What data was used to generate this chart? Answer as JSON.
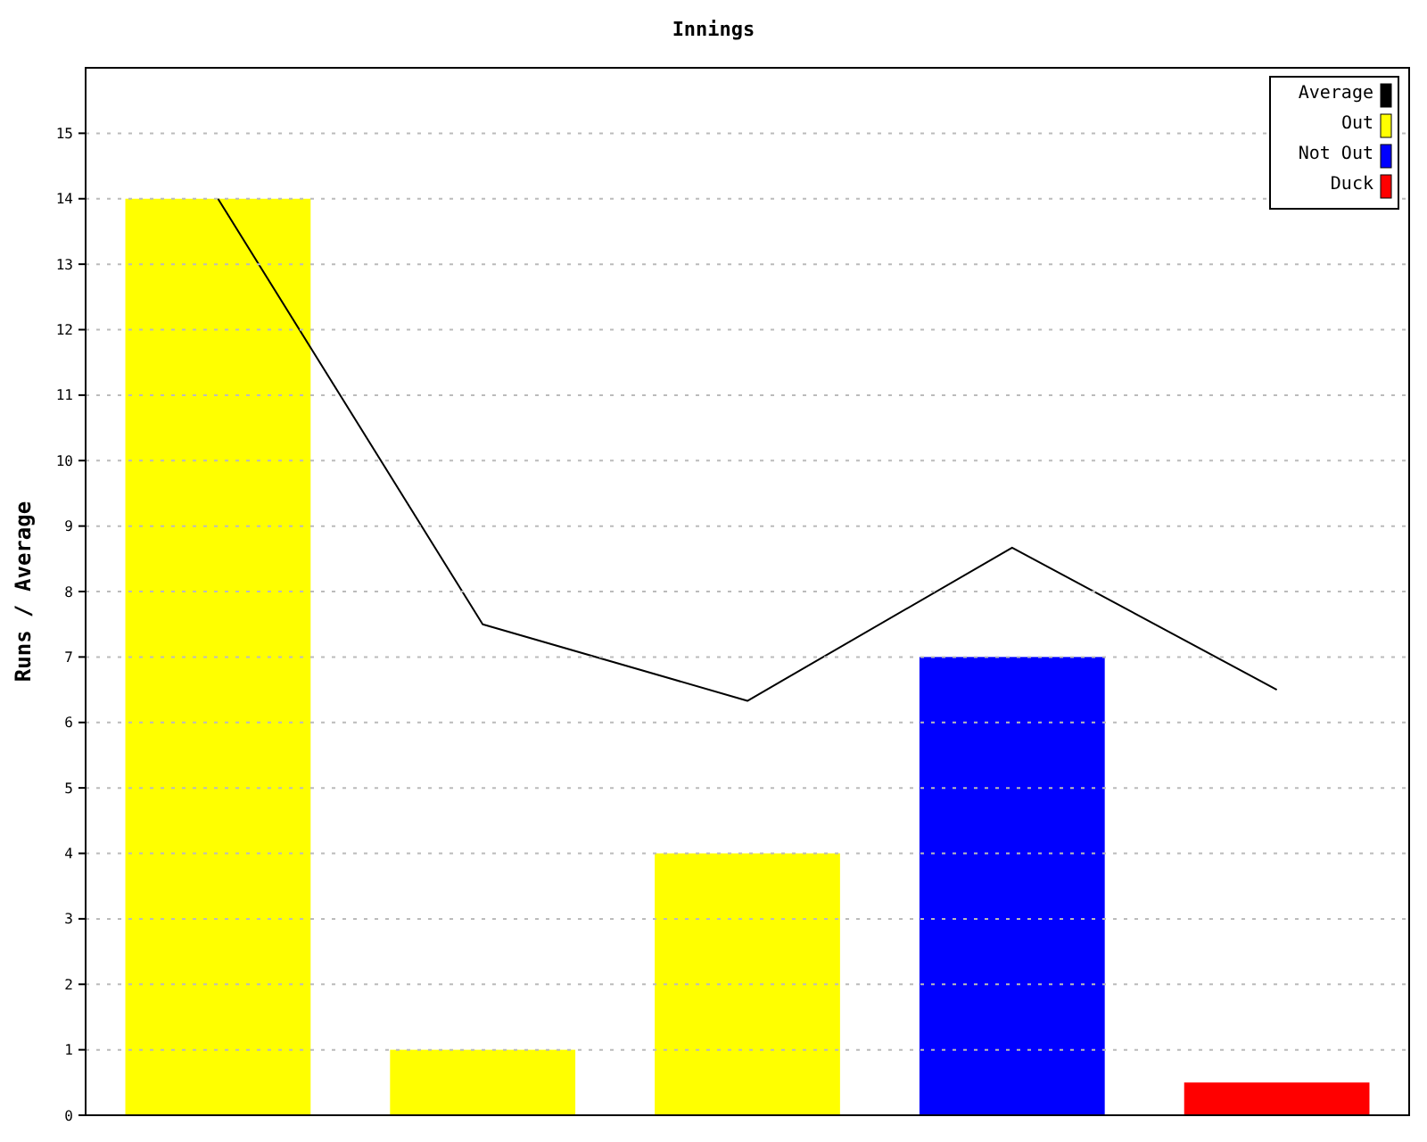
{
  "chart_data": {
    "type": "bar",
    "title": "Innings",
    "ylabel": "Runs / Average",
    "categories": [
      null,
      null,
      null,
      null,
      null
    ],
    "ylim": [
      0,
      16
    ],
    "yticks": [
      0,
      1,
      2,
      3,
      4,
      5,
      6,
      7,
      8,
      9,
      10,
      11,
      12,
      13,
      14,
      15
    ],
    "grid": "y",
    "legend": "top right",
    "series": [
      {
        "name": "Average",
        "type": "line",
        "color": "#000000",
        "values": [
          14,
          7.5,
          6.33,
          8.67,
          6.5
        ]
      },
      {
        "name": "Out",
        "color": "#ffff00",
        "values": [
          14,
          1,
          4,
          null,
          null
        ]
      },
      {
        "name": "Not Out",
        "color": "#0000ff",
        "values": [
          null,
          null,
          null,
          7,
          null
        ]
      },
      {
        "name": "Duck",
        "color": "#ff0000",
        "values": [
          null,
          null,
          null,
          null,
          0.5
        ]
      }
    ]
  }
}
